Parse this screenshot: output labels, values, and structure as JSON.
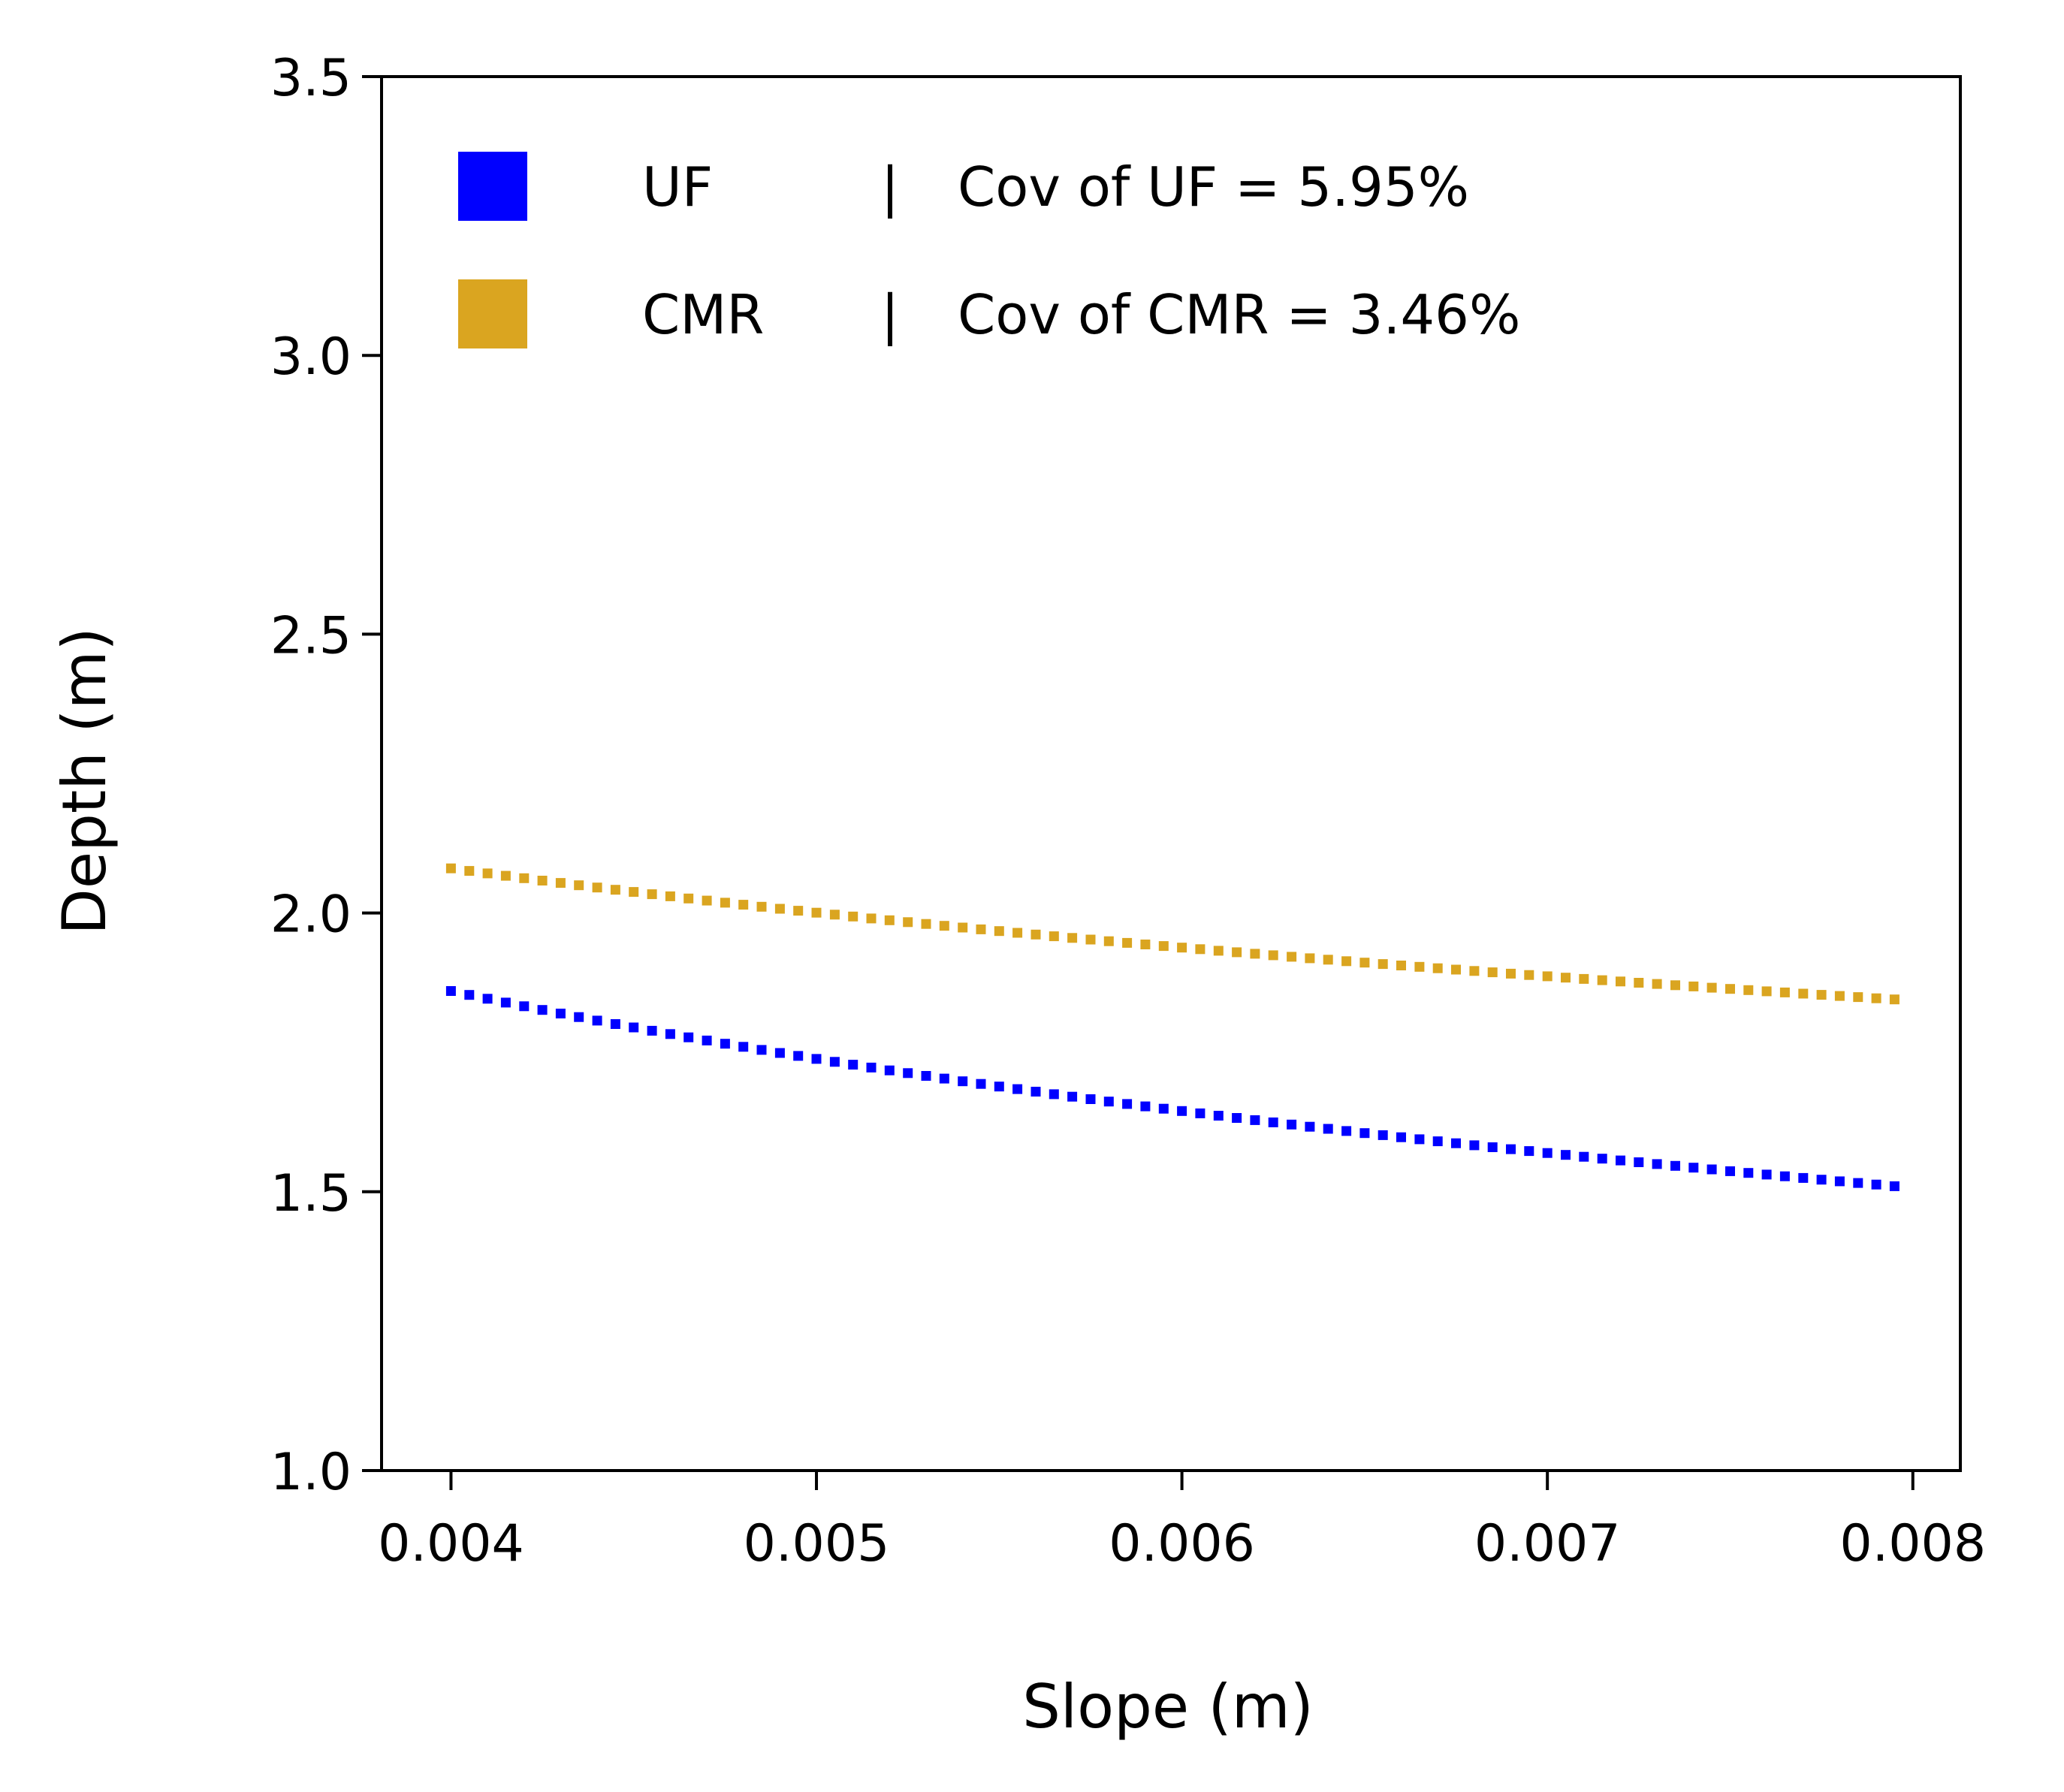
{
  "chart_data": {
    "type": "scatter",
    "title": "",
    "xlabel": "Slope (m)",
    "ylabel": "Depth (m)",
    "xlim": [
      0.00381,
      0.00813
    ],
    "ylim": [
      1.0,
      3.5
    ],
    "xticks": [
      0.004,
      0.005,
      0.006,
      0.007,
      0.008
    ],
    "xtick_labels": [
      "0.004",
      "0.005",
      "0.006",
      "0.007",
      "0.008"
    ],
    "yticks": [
      1.0,
      1.5,
      2.0,
      2.5,
      3.0,
      3.5
    ],
    "ytick_labels": [
      "1.0",
      "1.5",
      "2.0",
      "2.5",
      "3.0",
      "3.5"
    ],
    "grid": false,
    "legend_position": "top-left",
    "x_range": [
      0.004,
      0.00795
    ],
    "num_points": 80,
    "series": [
      {
        "name": "UF",
        "legend_label": "UF",
        "legend_note": "Cov of UF = 5.95%",
        "color": "#0000ff",
        "marker": "square",
        "y_start": 1.86,
        "y_end": 1.51,
        "exponent": -0.3
      },
      {
        "name": "CMR",
        "legend_label": "CMR",
        "legend_note": "Cov of CMR = 3.46%",
        "color": "#daa520",
        "marker": "square",
        "y_start": 2.08,
        "y_end": 1.845,
        "exponent": -0.176
      }
    ],
    "legend_separator": "|"
  }
}
